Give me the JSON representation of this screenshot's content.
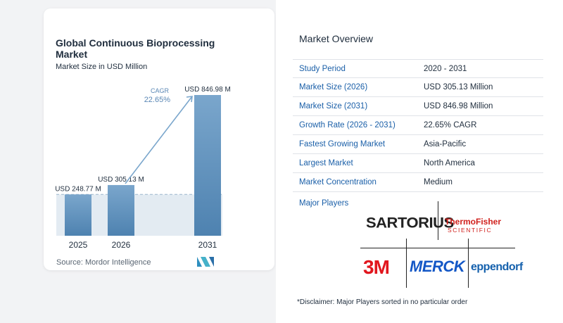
{
  "chart_data": {
    "type": "bar",
    "title": "Global Continuous Bioprocessing Market",
    "subtitle": "Market Size in USD Million",
    "categories": [
      "2025",
      "2026",
      "2031"
    ],
    "values": [
      248.77,
      305.13,
      846.98
    ],
    "data_labels": [
      "USD 248.77 M",
      "USD 305.13 M",
      "USD 846.98 M"
    ],
    "cagr_label": "CAGR",
    "cagr_value": "22.65%",
    "colors": {
      "bar_top": "#7aa6cc",
      "bar_bottom": "#4e82b0",
      "baseline_fill": "#e3ebf2",
      "arrow": "#7aa6cc",
      "cagr_text": "#5a87b5"
    },
    "source": "Source:  Mordor Intelligence"
  },
  "overview": {
    "title": "Market Overview",
    "rows": [
      {
        "label": "Study Period",
        "value": "2020 - 2031"
      },
      {
        "label": "Market Size (2026)",
        "value": "USD 305.13 Million"
      },
      {
        "label": "Market Size (2031)",
        "value": "USD 846.98 Million"
      },
      {
        "label": "Growth Rate (2026 - 2031)",
        "value": "22.65% CAGR"
      },
      {
        "label": "Fastest Growing Market",
        "value": "Asia-Pacific"
      },
      {
        "label": "Largest Market",
        "value": "North America"
      },
      {
        "label": "Market Concentration",
        "value": "Medium"
      }
    ],
    "players_title": "Major Players",
    "players": {
      "sartorius": "SARTORIUS",
      "thermo": "ThermoFisher",
      "thermo_sub": "SCIENTIFIC",
      "threem": "3M",
      "merck": "MERCK",
      "eppendorf": "eppendorf"
    },
    "disclaimer": "*Disclaimer: Major Players sorted in no particular order"
  }
}
